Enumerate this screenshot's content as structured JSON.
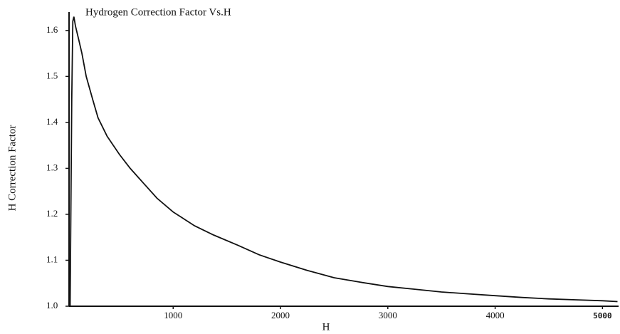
{
  "chart_data": {
    "type": "line",
    "title": "Hydrogen Correction Factor Vs.H",
    "x_label": "H",
    "y_label": "H Correction Factor",
    "x": [
      40,
      55,
      65,
      75,
      90,
      120,
      150,
      190,
      250,
      300,
      384,
      500,
      600,
      715,
      850,
      1000,
      1200,
      1377,
      1600,
      1800,
      2000,
      2250,
      2500,
      2750,
      3000,
      3250,
      3500,
      3750,
      4000,
      4250,
      4500,
      4750,
      5000,
      5140
    ],
    "series": [
      {
        "name": "H Correction Factor",
        "color": "#111111",
        "values": [
          1.0,
          1.45,
          1.62,
          1.63,
          1.61,
          1.58,
          1.55,
          1.5,
          1.45,
          1.41,
          1.37,
          1.33,
          1.3,
          1.27,
          1.235,
          1.205,
          1.175,
          1.155,
          1.133,
          1.112,
          1.096,
          1.078,
          1.062,
          1.052,
          1.043,
          1.037,
          1.031,
          1.027,
          1.023,
          1.019,
          1.016,
          1.014,
          1.012,
          1.01
        ]
      }
    ],
    "xlim": [
      30,
      5150
    ],
    "ylim": [
      1.0,
      1.64
    ],
    "xticks": [
      1000,
      2000,
      3000,
      4000,
      5000
    ],
    "yticks": [
      {
        "value": 1.0,
        "label": "1.0"
      },
      1.1,
      1.2,
      1.3,
      1.4,
      1.5,
      1.6
    ],
    "grid": false
  }
}
